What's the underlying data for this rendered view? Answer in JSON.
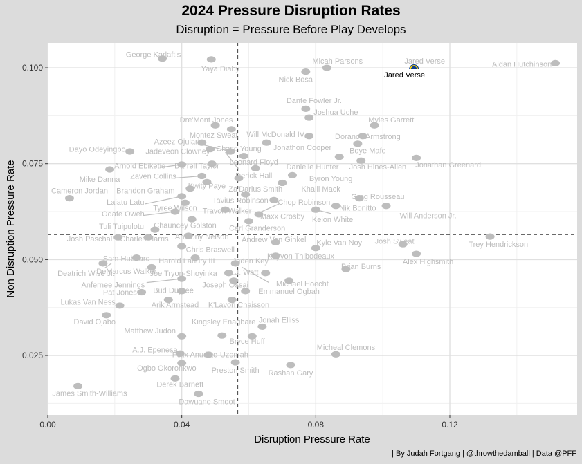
{
  "chart_data": {
    "type": "scatter",
    "title": "2024 Pressure Disruption Rates",
    "subtitle": "Disruption =  Pressure Before Play Develops",
    "xlabel": "Disruption Pressure Rate",
    "ylabel": "Non Disruption Pressure Rate",
    "xlim": [
      0.0,
      0.158
    ],
    "ylim": [
      0.0095,
      0.1065
    ],
    "xticks": [
      {
        "value": 0.0,
        "label": "0.00"
      },
      {
        "value": 0.04,
        "label": "0.04"
      },
      {
        "value": 0.08,
        "label": "0.08"
      },
      {
        "value": 0.12,
        "label": "0.12"
      }
    ],
    "yticks": [
      {
        "value": 0.025,
        "label": "0.025"
      },
      {
        "value": 0.05,
        "label": "0.050"
      },
      {
        "value": 0.075,
        "label": "0.075"
      },
      {
        "value": 0.1,
        "label": "0.100"
      }
    ],
    "reference_lines": {
      "x_mean": 0.0567,
      "y_mean": 0.0565
    },
    "grid": true,
    "caption": "| By Judah Fortgang | @throwthedamball | Data @PFF",
    "highlight_color": "#000000",
    "point_color": "#bdbdbd",
    "points": [
      {
        "name": "George Karlaftis",
        "x": 0.0342,
        "y": 0.1024
      },
      {
        "name": "Yaya Diaby",
        "x": 0.0488,
        "y": 0.1022
      },
      {
        "name": "Micah Parsons",
        "x": 0.0833,
        "y": 0.1
      },
      {
        "name": "Nick Bosa",
        "x": 0.077,
        "y": 0.099
      },
      {
        "name": "Jared Verse",
        "x": 0.1093,
        "y": 0.1002,
        "highlight": true
      },
      {
        "name": "Aidan Hutchinson",
        "x": 0.1515,
        "y": 0.1012
      },
      {
        "name": "Dante Fowler Jr.",
        "x": 0.077,
        "y": 0.0893
      },
      {
        "name": "Joshua Uche",
        "x": 0.078,
        "y": 0.087
      },
      {
        "name": "Myles Garrett",
        "x": 0.0975,
        "y": 0.085
      },
      {
        "name": "Dre'Mont Jones",
        "x": 0.05,
        "y": 0.085
      },
      {
        "name": "Montez Sweat",
        "x": 0.0548,
        "y": 0.084
      },
      {
        "name": "Will McDonald IV",
        "x": 0.078,
        "y": 0.0822
      },
      {
        "name": "Dorance Armstrong",
        "x": 0.094,
        "y": 0.0822
      },
      {
        "name": "Azeez Ojulari",
        "x": 0.046,
        "y": 0.0805
      },
      {
        "name": "Jonathon Cooper",
        "x": 0.0653,
        "y": 0.0805
      },
      {
        "name": "Boye Mafe",
        "x": 0.0925,
        "y": 0.0802
      },
      {
        "name": "Dayo Odeyingbo",
        "x": 0.0245,
        "y": 0.0782
      },
      {
        "name": "Jadeveon Clowney",
        "x": 0.0485,
        "y": 0.0788
      },
      {
        "name": "Chase Young",
        "x": 0.0545,
        "y": 0.0782
      },
      {
        "name": "Leonard Floyd",
        "x": 0.0585,
        "y": 0.077
      },
      {
        "name": "Danielle Hunter",
        "x": 0.087,
        "y": 0.0768
      },
      {
        "name": "Josh Hines-Allen",
        "x": 0.0935,
        "y": 0.0758
      },
      {
        "name": "Jonathan Greenard",
        "x": 0.11,
        "y": 0.0765
      },
      {
        "name": "Arnold Ebiketie",
        "x": 0.04,
        "y": 0.0748
      },
      {
        "name": "Darrell Taylor",
        "x": 0.049,
        "y": 0.075
      },
      {
        "name": "Mike Danna",
        "x": 0.0185,
        "y": 0.0735
      },
      {
        "name": "Derick Hall",
        "x": 0.062,
        "y": 0.0738
      },
      {
        "name": "Byron Young",
        "x": 0.073,
        "y": 0.072
      },
      {
        "name": "Zaven Collins",
        "x": 0.046,
        "y": 0.0718
      },
      {
        "name": "Kwity Paye",
        "x": 0.0475,
        "y": 0.0702
      },
      {
        "name": "Za'Darius Smith",
        "x": 0.057,
        "y": 0.0712
      },
      {
        "name": "Khalil Mack",
        "x": 0.07,
        "y": 0.07
      },
      {
        "name": "Cameron Jordan",
        "x": 0.0065,
        "y": 0.066
      },
      {
        "name": "Brandon Graham",
        "x": 0.0425,
        "y": 0.0685
      },
      {
        "name": "Tavius Robinson",
        "x": 0.059,
        "y": 0.067
      },
      {
        "name": "Greg Rousseau",
        "x": 0.093,
        "y": 0.066
      },
      {
        "name": "Laiatu Latu",
        "x": 0.04,
        "y": 0.0665
      },
      {
        "name": "Chop Robinson",
        "x": 0.0675,
        "y": 0.0655
      },
      {
        "name": "Nik Bonitto",
        "x": 0.086,
        "y": 0.064
      },
      {
        "name": "Tyree Wilson",
        "x": 0.041,
        "y": 0.0648
      },
      {
        "name": "Travon Walker",
        "x": 0.053,
        "y": 0.063
      },
      {
        "name": "Keion White",
        "x": 0.08,
        "y": 0.063
      },
      {
        "name": "Odafe Oweh",
        "x": 0.038,
        "y": 0.0625
      },
      {
        "name": "Maxx Crosby",
        "x": 0.063,
        "y": 0.0618
      },
      {
        "name": "Will Anderson Jr.",
        "x": 0.101,
        "y": 0.064
      },
      {
        "name": "Chauncey Golston",
        "x": 0.043,
        "y": 0.0605
      },
      {
        "name": "Carl Granderson",
        "x": 0.06,
        "y": 0.06
      },
      {
        "name": "Tuli Tuipulotu",
        "x": 0.032,
        "y": 0.0578
      },
      {
        "name": "Josh Paschal",
        "x": 0.021,
        "y": 0.0558
      },
      {
        "name": "Charles Harris",
        "x": 0.03,
        "y": 0.0558
      },
      {
        "name": "Anthony Nelson",
        "x": 0.042,
        "y": 0.0562
      },
      {
        "name": "Andrew Van Ginkel",
        "x": 0.068,
        "y": 0.0545
      },
      {
        "name": "Kyle Van Noy",
        "x": 0.08,
        "y": 0.053
      },
      {
        "name": "Josh Sweat",
        "x": 0.106,
        "y": 0.054
      },
      {
        "name": "Trey Hendrickson",
        "x": 0.132,
        "y": 0.056
      },
      {
        "name": "Chris Braswell",
        "x": 0.04,
        "y": 0.0535
      },
      {
        "name": "Sam Hubbard",
        "x": 0.0265,
        "y": 0.0505
      },
      {
        "name": "Harold Landry III",
        "x": 0.044,
        "y": 0.0505
      },
      {
        "name": "Kayvon Thibodeaux",
        "x": 0.068,
        "y": 0.051
      },
      {
        "name": "Alex Highsmith",
        "x": 0.11,
        "y": 0.0515
      },
      {
        "name": "Jaden Key",
        "x": 0.056,
        "y": 0.049
      },
      {
        "name": "Brian Burns",
        "x": 0.089,
        "y": 0.0475
      },
      {
        "name": "Deatrich Wise Jr.",
        "x": 0.0165,
        "y": 0.049
      },
      {
        "name": "DeMarcus Walker",
        "x": 0.031,
        "y": 0.048
      },
      {
        "name": "Joe Tryon-Shoyinka",
        "x": 0.054,
        "y": 0.0465
      },
      {
        "name": "T.J. Watt",
        "x": 0.065,
        "y": 0.0465
      },
      {
        "name": "Anfernee Jennings",
        "x": 0.04,
        "y": 0.045
      },
      {
        "name": "Joseph Ossai",
        "x": 0.0555,
        "y": 0.0445
      },
      {
        "name": "Michael Hoecht",
        "x": 0.072,
        "y": 0.0445
      },
      {
        "name": "Pat Jones II",
        "x": 0.028,
        "y": 0.0415
      },
      {
        "name": "Bud Dupree",
        "x": 0.04,
        "y": 0.0418
      },
      {
        "name": "Emmanuel Ogbah",
        "x": 0.059,
        "y": 0.0418
      },
      {
        "name": "Lukas Van Ness",
        "x": 0.0215,
        "y": 0.038
      },
      {
        "name": "Arik Armstead",
        "x": 0.036,
        "y": 0.0395
      },
      {
        "name": "K'Lavon Chaisson",
        "x": 0.055,
        "y": 0.0395
      },
      {
        "name": "David Ojabo",
        "x": 0.0175,
        "y": 0.0355
      },
      {
        "name": "Jonah Elliss",
        "x": 0.064,
        "y": 0.0325
      },
      {
        "name": "Matthew Judon",
        "x": 0.04,
        "y": 0.03
      },
      {
        "name": "Kingsley Enagbare",
        "x": 0.052,
        "y": 0.0302
      },
      {
        "name": "Bryce Huff",
        "x": 0.061,
        "y": 0.03
      },
      {
        "name": "A.J. Epenesa",
        "x": 0.0395,
        "y": 0.0255
      },
      {
        "name": "Felix Anudike-Uzomah",
        "x": 0.048,
        "y": 0.0252
      },
      {
        "name": "Micheal Clemons",
        "x": 0.086,
        "y": 0.0253
      },
      {
        "name": "Ogbo Okoronkwo",
        "x": 0.04,
        "y": 0.023
      },
      {
        "name": "Preston Smith",
        "x": 0.056,
        "y": 0.0232
      },
      {
        "name": "Rashan Gary",
        "x": 0.0725,
        "y": 0.0225
      },
      {
        "name": "Derek Barnett",
        "x": 0.038,
        "y": 0.019
      },
      {
        "name": "James Smith-Williams",
        "x": 0.009,
        "y": 0.017
      },
      {
        "name": "Dawuane Smoot",
        "x": 0.045,
        "y": 0.015
      }
    ],
    "labels": [
      {
        "name": "George Karlaftis",
        "x": 0.0315,
        "y": 0.1035
      },
      {
        "name": "Yaya Diaby",
        "x": 0.0515,
        "y": 0.0998
      },
      {
        "name": "Micah Parsons",
        "x": 0.0865,
        "y": 0.1018
      },
      {
        "name": "Nick Bosa",
        "x": 0.074,
        "y": 0.097
      },
      {
        "name": "Jared Verse",
        "x": 0.1125,
        "y": 0.1018,
        "grey": true
      },
      {
        "name": "Jared Verse",
        "x": 0.1065,
        "y": 0.0982,
        "highlight": true
      },
      {
        "name": "Aidan Hutchinson",
        "x": 0.1415,
        "y": 0.101
      },
      {
        "name": "Dante Fowler Jr.",
        "x": 0.0795,
        "y": 0.0915
      },
      {
        "name": "Joshua Uche",
        "x": 0.086,
        "y": 0.0885
      },
      {
        "name": "Myles Garrett",
        "x": 0.1025,
        "y": 0.0865
      },
      {
        "name": "Dre'Mont Jones",
        "x": 0.0473,
        "y": 0.0865
      },
      {
        "name": "Montez Sweat",
        "x": 0.0495,
        "y": 0.0825
      },
      {
        "name": "Will McDonald IV",
        "x": 0.068,
        "y": 0.0827
      },
      {
        "name": "Dorance Armstrong",
        "x": 0.0955,
        "y": 0.0822
      },
      {
        "name": "Azeez Ojulari",
        "x": 0.0385,
        "y": 0.0808
      },
      {
        "name": "Jonathon Cooper",
        "x": 0.076,
        "y": 0.0793
      },
      {
        "name": "Boye Mafe",
        "x": 0.0955,
        "y": 0.0785
      },
      {
        "name": "Dayo Odeyingbo",
        "x": 0.0148,
        "y": 0.0788
      },
      {
        "name": "Jadeveon Clowney",
        "x": 0.0388,
        "y": 0.0783
      },
      {
        "name": "Chase Young",
        "x": 0.057,
        "y": 0.079
      },
      {
        "name": "Leonard Floyd",
        "x": 0.0615,
        "y": 0.0755
      },
      {
        "name": "Danielle Hunter",
        "x": 0.079,
        "y": 0.0742
      },
      {
        "name": "Josh Hines-Allen",
        "x": 0.0985,
        "y": 0.0742
      },
      {
        "name": "Jonathan Greenard",
        "x": 0.1195,
        "y": 0.0748
      },
      {
        "name": "Arnold Ebiketie",
        "x": 0.0275,
        "y": 0.0745
      },
      {
        "name": "Darrell Taylor",
        "x": 0.0445,
        "y": 0.0745
      },
      {
        "name": "Mike Danna",
        "x": 0.0155,
        "y": 0.071
      },
      {
        "name": "Derick Hall",
        "x": 0.0615,
        "y": 0.072
      },
      {
        "name": "Byron Young",
        "x": 0.0845,
        "y": 0.0712
      },
      {
        "name": "Zaven Collins",
        "x": 0.0315,
        "y": 0.0718
      },
      {
        "name": "Kwity Paye",
        "x": 0.0475,
        "y": 0.0693
      },
      {
        "name": "Za'Darius Smith",
        "x": 0.062,
        "y": 0.0685
      },
      {
        "name": "Khalil Mack",
        "x": 0.0815,
        "y": 0.0685
      },
      {
        "name": "Cameron Jordan",
        "x": 0.0095,
        "y": 0.068
      },
      {
        "name": "Brandon Graham",
        "x": 0.0292,
        "y": 0.068
      },
      {
        "name": "Tavius Robinson",
        "x": 0.0575,
        "y": 0.0655
      },
      {
        "name": "Greg Rousseau",
        "x": 0.0985,
        "y": 0.0665
      },
      {
        "name": "Laiatu Latu",
        "x": 0.0232,
        "y": 0.065
      },
      {
        "name": "Chop Robinson",
        "x": 0.0765,
        "y": 0.065
      },
      {
        "name": "Nik Bonitto",
        "x": 0.0925,
        "y": 0.0635
      },
      {
        "name": "Tyree Wilson",
        "x": 0.038,
        "y": 0.0635
      },
      {
        "name": "Travon Walker",
        "x": 0.0535,
        "y": 0.0628
      },
      {
        "name": "Keion White",
        "x": 0.085,
        "y": 0.0605
      },
      {
        "name": "Odafe Oweh",
        "x": 0.0225,
        "y": 0.062
      },
      {
        "name": "Maxx Crosby",
        "x": 0.07,
        "y": 0.0613
      },
      {
        "name": "Will Anderson Jr.",
        "x": 0.1135,
        "y": 0.0615
      },
      {
        "name": "Chauncey Golston",
        "x": 0.041,
        "y": 0.059
      },
      {
        "name": "Carl Granderson",
        "x": 0.0625,
        "y": 0.0583
      },
      {
        "name": "Tuli Tuipulotu",
        "x": 0.022,
        "y": 0.0587
      },
      {
        "name": "Josh Paschal",
        "x": 0.0125,
        "y": 0.0555
      },
      {
        "name": "Charles Harris",
        "x": 0.0288,
        "y": 0.0555
      },
      {
        "name": "Anthony Nelson",
        "x": 0.046,
        "y": 0.056
      },
      {
        "name": "Andrew Van Ginkel",
        "x": 0.0675,
        "y": 0.0553
      },
      {
        "name": "Kyle Van Noy",
        "x": 0.087,
        "y": 0.0545
      },
      {
        "name": "Josh Sweat",
        "x": 0.1035,
        "y": 0.0548
      },
      {
        "name": "Trey Hendrickson",
        "x": 0.1345,
        "y": 0.054
      },
      {
        "name": "Chris Braswell",
        "x": 0.0485,
        "y": 0.0527
      },
      {
        "name": "Sam Hubbard",
        "x": 0.0235,
        "y": 0.0503
      },
      {
        "name": "Harold Landry III",
        "x": 0.0415,
        "y": 0.0497
      },
      {
        "name": "Kayvon Thibodeaux",
        "x": 0.0755,
        "y": 0.051
      },
      {
        "name": "Alex Highsmith",
        "x": 0.1135,
        "y": 0.0495
      },
      {
        "name": "Jaden Key",
        "x": 0.0605,
        "y": 0.0497
      },
      {
        "name": "Brian Burns",
        "x": 0.0935,
        "y": 0.0483
      },
      {
        "name": "Deatrich Wise Jr.",
        "x": 0.0115,
        "y": 0.0465
      },
      {
        "name": "DeMarcus Walker",
        "x": 0.0235,
        "y": 0.047
      },
      {
        "name": "Joe Tryon-Shoyinka",
        "x": 0.0405,
        "y": 0.0465
      },
      {
        "name": "T.J. Watt",
        "x": 0.0585,
        "y": 0.0467
      },
      {
        "name": "Anfernee Jennings",
        "x": 0.0195,
        "y": 0.0435
      },
      {
        "name": "Joseph Ossai",
        "x": 0.053,
        "y": 0.0435
      },
      {
        "name": "Michael Hoecht",
        "x": 0.076,
        "y": 0.0438
      },
      {
        "name": "Pat Jones II",
        "x": 0.0225,
        "y": 0.0415
      },
      {
        "name": "Bud Dupree",
        "x": 0.0375,
        "y": 0.042
      },
      {
        "name": "Emmanuel Ogbah",
        "x": 0.072,
        "y": 0.0418
      },
      {
        "name": "Lukas Van Ness",
        "x": 0.012,
        "y": 0.039
      },
      {
        "name": "Arik Armstead",
        "x": 0.038,
        "y": 0.0383
      },
      {
        "name": "K'Lavon Chaisson",
        "x": 0.057,
        "y": 0.0383
      },
      {
        "name": "David Ojabo",
        "x": 0.014,
        "y": 0.0338
      },
      {
        "name": "Jonah Elliss",
        "x": 0.069,
        "y": 0.0343
      },
      {
        "name": "Matthew Judon",
        "x": 0.0305,
        "y": 0.0315
      },
      {
        "name": "Kingsley Enagbare",
        "x": 0.0525,
        "y": 0.0338
      },
      {
        "name": "Bryce Huff",
        "x": 0.0595,
        "y": 0.0288
      },
      {
        "name": "A.J. Epenesa",
        "x": 0.032,
        "y": 0.0265
      },
      {
        "name": "Felix Anudike-Uzomah",
        "x": 0.0485,
        "y": 0.0253
      },
      {
        "name": "Micheal Clemons",
        "x": 0.089,
        "y": 0.0272
      },
      {
        "name": "Ogbo Okoronkwo",
        "x": 0.0355,
        "y": 0.0218
      },
      {
        "name": "Preston Smith",
        "x": 0.056,
        "y": 0.0212
      },
      {
        "name": "Rashan Gary",
        "x": 0.0725,
        "y": 0.0205
      },
      {
        "name": "Derek Barnett",
        "x": 0.0395,
        "y": 0.0175
      },
      {
        "name": "James Smith-Williams",
        "x": 0.0125,
        "y": 0.0152
      },
      {
        "name": "Dawuane Smoot",
        "x": 0.0475,
        "y": 0.013
      }
    ],
    "leaders": [
      {
        "from": [
          0.0335,
          0.074
        ],
        "to": [
          0.04,
          0.0748
        ]
      },
      {
        "from": [
          0.037,
          0.0712
        ],
        "to": [
          0.046,
          0.0718
        ]
      },
      {
        "from": [
          0.046,
          0.08
        ],
        "to": [
          0.0545,
          0.0782
        ]
      },
      {
        "from": [
          0.053,
          0.078
        ],
        "to": [
          0.057,
          0.0735
        ]
      },
      {
        "from": [
          0.029,
          0.0645
        ],
        "to": [
          0.04,
          0.0665
        ]
      },
      {
        "from": [
          0.0285,
          0.0615
        ],
        "to": [
          0.038,
          0.0625
        ]
      },
      {
        "from": [
          0.069,
          0.0645
        ],
        "to": [
          0.062,
          0.0618
        ]
      },
      {
        "from": [
          0.0845,
          0.062
        ],
        "to": [
          0.08,
          0.063
        ]
      },
      {
        "from": [
          0.0295,
          0.044
        ],
        "to": [
          0.04,
          0.045
        ]
      },
      {
        "from": [
          0.017,
          0.0478
        ],
        "to": [
          0.019,
          0.049
        ]
      },
      {
        "from": [
          0.066,
          0.044
        ],
        "to": [
          0.058,
          0.048
        ]
      },
      {
        "from": [
          0.057,
          0.043
        ],
        "to": [
          0.0555,
          0.0445
        ]
      }
    ]
  }
}
